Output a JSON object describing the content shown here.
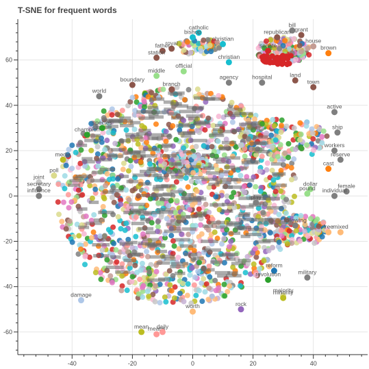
{
  "chart_data": {
    "type": "scatter",
    "title": "T-SNE for frequent words",
    "xlabel": "",
    "ylabel": "",
    "xlim": [
      -58,
      58
    ],
    "ylim": [
      -70,
      78
    ],
    "x_ticks": [
      -40,
      -20,
      0,
      20,
      40
    ],
    "y_ticks": [
      -60,
      -40,
      -20,
      0,
      20,
      40,
      60
    ],
    "grid": true,
    "legend": "none",
    "palette": [
      "#1f77b4",
      "#aec7e8",
      "#ff7f0e",
      "#ffbb78",
      "#2ca02c",
      "#98df8a",
      "#d62728",
      "#ff9896",
      "#9467bd",
      "#c5b0d5",
      "#8c564b",
      "#c49c94",
      "#e377c2",
      "#f7b6d2",
      "#7f7f7f",
      "#c7c7c7",
      "#bcbd22",
      "#dbdb8d",
      "#17becf",
      "#9edae5"
    ],
    "labeled_points": [
      {
        "word": "bill",
        "x": 33,
        "y": 73,
        "color": "#7f7f7f"
      },
      {
        "word": "grant",
        "x": 36,
        "y": 71,
        "color": "#8c564b"
      },
      {
        "word": "republican",
        "x": 28,
        "y": 70,
        "color": "#8c564b"
      },
      {
        "word": "house",
        "x": 40,
        "y": 66,
        "color": "#c49c94"
      },
      {
        "word": "brown",
        "x": 45,
        "y": 63,
        "color": "#ff7f0e"
      },
      {
        "word": "senate",
        "x": 25,
        "y": 64,
        "color": "#d62728"
      },
      {
        "word": "christian",
        "x": 10,
        "y": 67,
        "color": "#17becf"
      },
      {
        "word": "christian",
        "x": 12,
        "y": 59,
        "color": "#17becf"
      },
      {
        "word": "catholic",
        "x": 2,
        "y": 72,
        "color": "#17becf"
      },
      {
        "word": "bishop",
        "x": 0,
        "y": 70,
        "color": "#17becf"
      },
      {
        "word": "father",
        "x": -10,
        "y": 64,
        "color": "#8c564b"
      },
      {
        "word": "royal",
        "x": -7,
        "y": 65,
        "color": "#8c564b"
      },
      {
        "word": "station",
        "x": -12,
        "y": 61,
        "color": "#8c564b"
      },
      {
        "word": "middle",
        "x": -12,
        "y": 53,
        "color": "#98df8a"
      },
      {
        "word": "official",
        "x": -3,
        "y": 55,
        "color": "#98df8a"
      },
      {
        "word": "agency",
        "x": 12,
        "y": 50,
        "color": "#7f7f7f"
      },
      {
        "word": "boundary",
        "x": -20,
        "y": 49,
        "color": "#8c564b"
      },
      {
        "word": "branch",
        "x": -7,
        "y": 47,
        "color": "#8c564b"
      },
      {
        "word": "world",
        "x": -31,
        "y": 44,
        "color": "#7f7f7f"
      },
      {
        "word": "hospital",
        "x": 23,
        "y": 50,
        "color": "#7f7f7f"
      },
      {
        "word": "land",
        "x": 34,
        "y": 51,
        "color": "#8c564b"
      },
      {
        "word": "town",
        "x": 40,
        "y": 48,
        "color": "#8c564b"
      },
      {
        "word": "active",
        "x": 47,
        "y": 37,
        "color": "#7f7f7f"
      },
      {
        "word": "ship",
        "x": 48,
        "y": 28,
        "color": "#7f7f7f"
      },
      {
        "word": "workers",
        "x": 47,
        "y": 20,
        "color": "#7f7f7f"
      },
      {
        "word": "reserve",
        "x": 49,
        "y": 16,
        "color": "#7f7f7f"
      },
      {
        "word": "cast",
        "x": 45,
        "y": 12,
        "color": "#ff7f0e"
      },
      {
        "word": "species",
        "x": -30,
        "y": 30,
        "color": "#2ca02c"
      },
      {
        "word": "champion",
        "x": -35,
        "y": 27,
        "color": "#2ca02c"
      },
      {
        "word": "media",
        "x": -43,
        "y": 16,
        "color": "#bcbd22"
      },
      {
        "word": "poll",
        "x": -46,
        "y": 9,
        "color": "#dbdb8d"
      },
      {
        "word": "joint",
        "x": -51,
        "y": 6,
        "color": "#c7c7c7"
      },
      {
        "word": "secretary",
        "x": -51,
        "y": 3,
        "color": "#7f7f7f"
      },
      {
        "word": "influence",
        "x": -51,
        "y": 0,
        "color": "#7f7f7f"
      },
      {
        "word": "dollar",
        "x": 39,
        "y": 3,
        "color": "#98df8a"
      },
      {
        "word": "pound",
        "x": 38,
        "y": 1,
        "color": "#98df8a"
      },
      {
        "word": "female",
        "x": 51,
        "y": 2,
        "color": "#7f7f7f"
      },
      {
        "word": "individual",
        "x": 47,
        "y": 0,
        "color": "#7f7f7f"
      },
      {
        "word": "play",
        "x": 21,
        "y": -3,
        "color": "#7f7f7f"
      },
      {
        "word": "following",
        "x": 34,
        "y": -13,
        "color": "#7f7f7f"
      },
      {
        "word": "mixed",
        "x": 49,
        "y": -16,
        "color": "#ffbb78"
      },
      {
        "word": "free",
        "x": 45,
        "y": -16,
        "color": "#ffbb78"
      },
      {
        "word": "reform",
        "x": 27,
        "y": -33,
        "color": "#1f77b4"
      },
      {
        "word": "revolution",
        "x": 25,
        "y": -37,
        "color": "#2ca02c"
      },
      {
        "word": "military",
        "x": 38,
        "y": -36,
        "color": "#7f7f7f"
      },
      {
        "word": "majority",
        "x": 30,
        "y": -44,
        "color": "#dbdb8d"
      },
      {
        "word": "minority",
        "x": 30,
        "y": -45,
        "color": "#bcbd22"
      },
      {
        "word": "rock",
        "x": 16,
        "y": -50,
        "color": "#9467bd"
      },
      {
        "word": "damage",
        "x": -37,
        "y": -46,
        "color": "#aec7e8"
      },
      {
        "word": "worth",
        "x": 0,
        "y": -51,
        "color": "#ffbb78"
      },
      {
        "word": "mean",
        "x": -17,
        "y": -60,
        "color": "#bcbd22"
      },
      {
        "word": "means",
        "x": -12,
        "y": -61,
        "color": "#ff9896"
      },
      {
        "word": "daily",
        "x": -10,
        "y": -60,
        "color": "#ff9896"
      }
    ]
  }
}
